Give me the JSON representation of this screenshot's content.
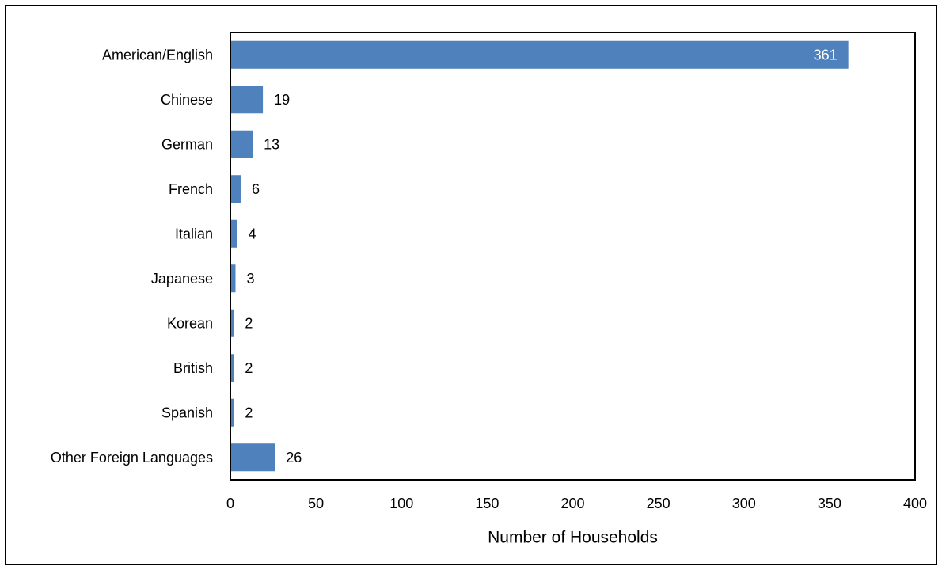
{
  "chart_data": {
    "type": "bar",
    "orientation": "horizontal",
    "title": "",
    "xlabel": "Number of Households",
    "ylabel": "",
    "categories": [
      "American/English",
      "Chinese",
      "German",
      "French",
      "Italian",
      "Japanese",
      "Korean",
      "British",
      "Spanish",
      "Other Foreign Languages"
    ],
    "values": [
      361,
      19,
      13,
      6,
      4,
      3,
      2,
      2,
      2,
      26
    ],
    "xlim": [
      0,
      400
    ],
    "xticks": [
      0,
      50,
      100,
      150,
      200,
      250,
      300,
      350,
      400
    ],
    "grid": false,
    "legend": "none",
    "bar_color": "#4F81BD",
    "data_labels": true
  }
}
